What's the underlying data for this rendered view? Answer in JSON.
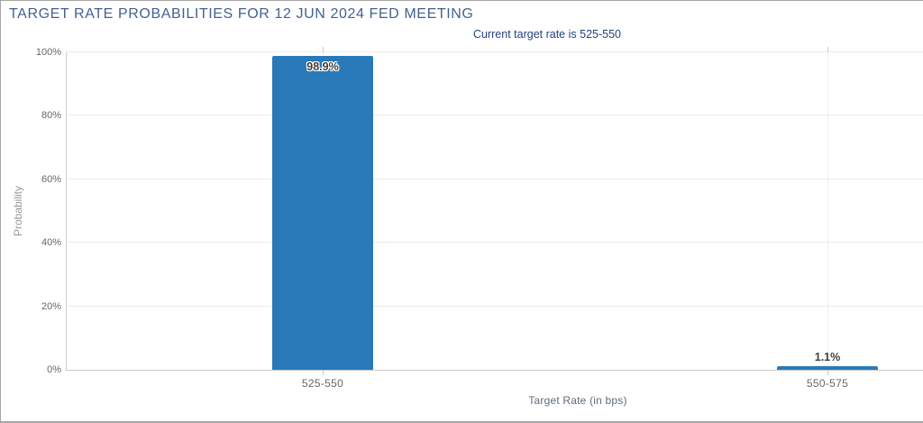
{
  "chart_data": {
    "type": "bar",
    "title": "TARGET RATE PROBABILITIES FOR 12 JUN 2024 FED MEETING",
    "subtitle": "Current target rate is 525-550",
    "categories": [
      "525-550",
      "550-575"
    ],
    "values": [
      98.9,
      1.1
    ],
    "value_labels": [
      "98.9%",
      "1.1%"
    ],
    "xlabel": "Target Rate (in bps)",
    "ylabel": "Probability",
    "ylim": [
      0,
      100
    ],
    "yticks": [
      0,
      20,
      40,
      60,
      80,
      100
    ],
    "ytick_labels": [
      "0%",
      "20%",
      "40%",
      "60%",
      "80%",
      "100%"
    ],
    "grid": true,
    "legend_position": "none"
  },
  "colors": {
    "bar": "#2a7ab9",
    "title_text": "#44618f",
    "subtitle_text": "#26417e",
    "axis_text": "#666666",
    "gridline": "#ebebeb",
    "axis_line": "#cccccc",
    "panel_border": "#a6a6a6"
  }
}
